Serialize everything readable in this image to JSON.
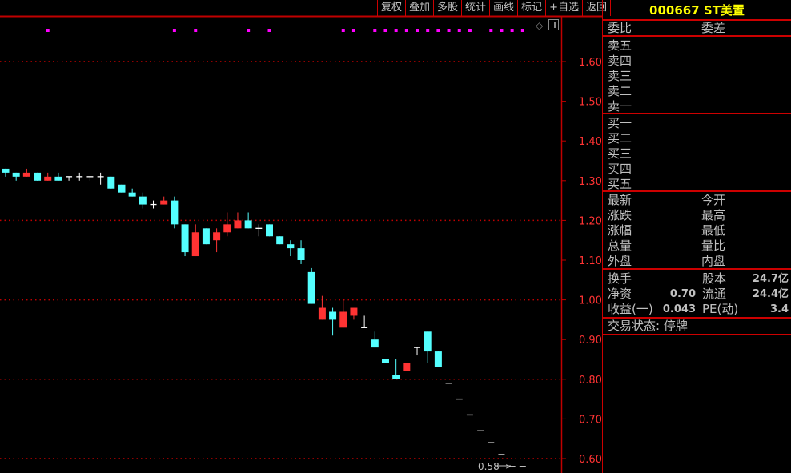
{
  "toolbar": [
    "复权",
    "叠加",
    "多股",
    "统计",
    "画线",
    "标记",
    "+自选",
    "返回"
  ],
  "stock": {
    "code_name": "000667 ST美置"
  },
  "quote_header": {
    "left": "委比",
    "right": "委差"
  },
  "sell": [
    "卖五",
    "卖四",
    "卖三",
    "卖二",
    "卖一"
  ],
  "buy": [
    "买一",
    "买二",
    "买三",
    "买四",
    "买五"
  ],
  "stats": [
    [
      "最新",
      "今开"
    ],
    [
      "涨跌",
      "最高"
    ],
    [
      "涨幅",
      "最低"
    ],
    [
      "总量",
      "量比"
    ],
    [
      "外盘",
      "内盘"
    ]
  ],
  "fundamentals": [
    {
      "l1": "换手",
      "v1": "",
      "l2": "股本",
      "v2": "24.7亿"
    },
    {
      "l1": "净资",
      "v1": "0.70",
      "l2": "流通",
      "v2": "24.4亿"
    },
    {
      "l1": "收益(一)",
      "v1": "0.043",
      "l2": "PE(动)",
      "v2": "3.4"
    }
  ],
  "status": "交易状态: 停牌",
  "colors": {
    "up": "#ff3333",
    "down": "#54ffff",
    "flat": "#ffffff",
    "grid": "#c00000",
    "axis_label": "#ff3333",
    "marker": "#ff00ff"
  },
  "chart_data": {
    "type": "candlestick",
    "y_ticks": [
      "1.60",
      "1.50",
      "1.40",
      "1.30",
      "1.20",
      "1.10",
      "1.00",
      "0.90",
      "0.80",
      "0.70",
      "0.60"
    ],
    "ylim": [
      0.58,
      1.69
    ],
    "dotted_grid_at": [
      1.6,
      1.2,
      1.0,
      0.8,
      0.6
    ],
    "low_label": "0.58",
    "marker_candles": [
      4,
      16,
      18,
      23,
      25,
      32,
      33,
      35,
      36,
      37,
      38,
      39,
      40,
      41,
      42,
      43,
      44,
      46,
      47,
      48,
      49
    ],
    "ohlc": [
      [
        1.33,
        1.33,
        1.31,
        1.32
      ],
      [
        1.32,
        1.32,
        1.3,
        1.31
      ],
      [
        1.31,
        1.33,
        1.31,
        1.32
      ],
      [
        1.32,
        1.32,
        1.3,
        1.3
      ],
      [
        1.3,
        1.32,
        1.3,
        1.31
      ],
      [
        1.31,
        1.32,
        1.3,
        1.3
      ],
      [
        1.31,
        1.31,
        1.3,
        1.31
      ],
      [
        1.31,
        1.32,
        1.3,
        1.31
      ],
      [
        1.31,
        1.31,
        1.3,
        1.31
      ],
      [
        1.31,
        1.32,
        1.29,
        1.31
      ],
      [
        1.31,
        1.31,
        1.28,
        1.28
      ],
      [
        1.29,
        1.29,
        1.27,
        1.27
      ],
      [
        1.27,
        1.28,
        1.26,
        1.26
      ],
      [
        1.26,
        1.27,
        1.23,
        1.24
      ],
      [
        1.24,
        1.25,
        1.23,
        1.24
      ],
      [
        1.24,
        1.26,
        1.24,
        1.25
      ],
      [
        1.25,
        1.26,
        1.18,
        1.19
      ],
      [
        1.19,
        1.19,
        1.11,
        1.12
      ],
      [
        1.11,
        1.19,
        1.11,
        1.17
      ],
      [
        1.18,
        1.18,
        1.14,
        1.14
      ],
      [
        1.15,
        1.18,
        1.12,
        1.17
      ],
      [
        1.17,
        1.22,
        1.16,
        1.19
      ],
      [
        1.18,
        1.22,
        1.18,
        1.2
      ],
      [
        1.2,
        1.22,
        1.18,
        1.18
      ],
      [
        1.18,
        1.19,
        1.16,
        1.18
      ],
      [
        1.19,
        1.19,
        1.16,
        1.16
      ],
      [
        1.16,
        1.16,
        1.14,
        1.14
      ],
      [
        1.14,
        1.15,
        1.11,
        1.13
      ],
      [
        1.13,
        1.15,
        1.09,
        1.1
      ],
      [
        1.07,
        1.08,
        0.99,
        0.99
      ],
      [
        0.95,
        1.01,
        0.95,
        0.98
      ],
      [
        0.97,
        0.98,
        0.91,
        0.95
      ],
      [
        0.93,
        1.0,
        0.93,
        0.97
      ],
      [
        0.96,
        0.98,
        0.95,
        0.98
      ],
      [
        0.93,
        0.96,
        0.93,
        0.93
      ],
      [
        0.9,
        0.92,
        0.88,
        0.88
      ],
      [
        0.85,
        0.85,
        0.84,
        0.84
      ],
      [
        0.81,
        0.85,
        0.8,
        0.8
      ],
      [
        0.82,
        0.84,
        0.82,
        0.84
      ],
      [
        0.88,
        0.88,
        0.86,
        0.88
      ],
      [
        0.92,
        0.92,
        0.84,
        0.87
      ],
      [
        0.87,
        0.87,
        0.83,
        0.83
      ],
      [
        0.79,
        0.79,
        0.79,
        0.79
      ],
      [
        0.75,
        0.75,
        0.75,
        0.75
      ],
      [
        0.71,
        0.71,
        0.71,
        0.71
      ],
      [
        0.67,
        0.67,
        0.67,
        0.67
      ],
      [
        0.64,
        0.64,
        0.64,
        0.64
      ],
      [
        0.61,
        0.61,
        0.61,
        0.61
      ],
      [
        0.58,
        0.58,
        0.58,
        0.58
      ],
      [
        0.58,
        0.58,
        0.58,
        0.58
      ]
    ]
  }
}
